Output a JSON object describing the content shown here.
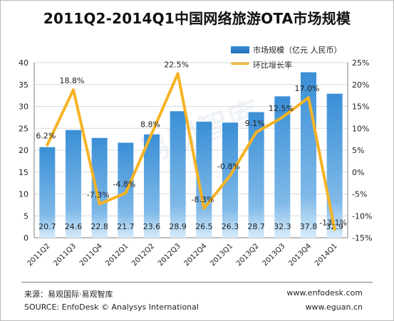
{
  "title": "2011Q2-2014Q1中国网络旅游OTA市场规模",
  "legend": {
    "bar_label": "市场规模（亿元 人民币）",
    "line_label": "环比增长率"
  },
  "footer": {
    "source_cn": "来源：易观国际·易观智库",
    "source_en": "SOURCE: EnfoDesk © Analysys International",
    "url1": "www.enfodesk.com",
    "url2": "www.eguan.cn"
  },
  "watermark": "易观智库",
  "colors": {
    "bar_top": "#3a8fd6",
    "bar_bottom": "#1a66b3",
    "line": "#f5b324",
    "grid": "#d9d9d9"
  },
  "chart_data": {
    "type": "bar",
    "categories": [
      "2011Q2",
      "2011Q3",
      "2011Q4",
      "2012Q1",
      "2012Q2",
      "2012Q3",
      "2012Q4",
      "2013Q1",
      "2013Q2",
      "2013Q3",
      "2013Q4",
      "2014Q1"
    ],
    "series": [
      {
        "name": "市场规模（亿元 人民币）",
        "type": "bar",
        "axis": "left",
        "values": [
          20.7,
          24.6,
          22.8,
          21.7,
          23.6,
          28.9,
          26.5,
          26.3,
          28.7,
          32.3,
          37.8,
          32.9
        ],
        "labels": [
          "20.7",
          "24.6",
          "22.8",
          "21.7",
          "23.6",
          "28.9",
          "26.5",
          "26.3",
          "28.7",
          "32.3",
          "37.8",
          "32.9"
        ]
      },
      {
        "name": "环比增长率",
        "type": "line",
        "axis": "right",
        "values": [
          6.2,
          18.8,
          -7.3,
          -4.8,
          8.8,
          22.5,
          -8.3,
          -0.8,
          9.1,
          12.5,
          17.0,
          -13.1
        ],
        "labels": [
          "6.2%",
          "18.8%",
          "-7.3%",
          "-4.8%",
          "8.8%",
          "22.5%",
          "-8.3%",
          "-0.8%",
          "9.1%",
          "12.5%",
          "17.0%",
          "-13.1%"
        ]
      }
    ],
    "ylim_left": [
      0,
      40
    ],
    "yticks_left": [
      "0",
      "5",
      "10",
      "15",
      "20",
      "25",
      "30",
      "35",
      "40"
    ],
    "ylim_right": [
      -15,
      25
    ],
    "yticks_right": [
      "-15%",
      "-10%",
      "-5%",
      "0%",
      "5%",
      "10%",
      "15%",
      "20%",
      "25%"
    ],
    "grid": true,
    "legend_position": "top-right"
  }
}
